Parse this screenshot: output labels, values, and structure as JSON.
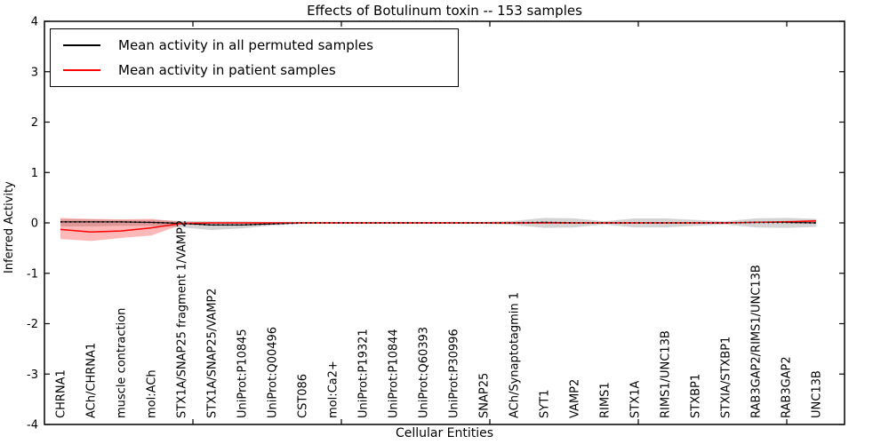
{
  "chart_data": {
    "type": "line",
    "title": "Effects of Botulinum toxin -- 153 samples",
    "xlabel": "Cellular Entities",
    "ylabel": "Inferred Activity",
    "ylim": [
      -4,
      4
    ],
    "yticks": [
      "4",
      "3",
      "2",
      "1",
      "0",
      "-1",
      "-2",
      "-3",
      "-4"
    ],
    "grid": false,
    "legend_position": "upper left",
    "categories": [
      "CHRNA1",
      "ACh/CHRNA1",
      "muscle contraction",
      "mol:ACh",
      "STX1A/SNAP25 fragment 1/VAMP2",
      "STX1A/SNAP25/VAMP2",
      "UniProt:P10845",
      "UniProt:Q00496",
      "CST086",
      "mol:Ca2+",
      "UniProt:P19321",
      "UniProt:P10844",
      "UniProt:Q60393",
      "UniProt:P30996",
      "SNAP25",
      "ACh/Synaptotagmin 1",
      "SYT1",
      "VAMP2",
      "RIMS1",
      "STX1A",
      "RIMS1/UNC13B",
      "STXBP1",
      "STXIA/STXBP1",
      "RAB3GAP2/RIMS1/UNC13B",
      "RAB3GAP2",
      "UNC13B"
    ],
    "series": [
      {
        "name": "Mean activity in all permuted samples",
        "color": "#000000",
        "values": [
          0.02,
          0.02,
          0.02,
          0.01,
          -0.01,
          -0.04,
          -0.04,
          -0.02,
          0,
          0,
          0,
          0,
          0,
          0,
          0,
          0,
          0.01,
          0,
          0,
          0,
          0,
          0,
          0,
          0.01,
          0.01,
          0
        ]
      },
      {
        "name": "Mean activity in patient samples",
        "color": "#ff0000",
        "values": [
          -0.13,
          -0.18,
          -0.16,
          -0.1,
          -0.01,
          0,
          0,
          0,
          0,
          0,
          0,
          0,
          0,
          0,
          0,
          0,
          0,
          0,
          0,
          0,
          0,
          0,
          0,
          0.01,
          0.02,
          0.04
        ]
      }
    ],
    "bands": [
      {
        "name": "permuted-confidence-band",
        "color": "rgba(110,110,110,0.30)",
        "upper": [
          0.07,
          0.07,
          0.06,
          0.06,
          0.04,
          0.03,
          0.03,
          0.02,
          0.02,
          0.02,
          0.02,
          0.02,
          0.02,
          0.02,
          0.02,
          0.04,
          0.1,
          0.09,
          0.03,
          0.09,
          0.09,
          0.06,
          0.03,
          0.09,
          0.1,
          0.08
        ],
        "lower": [
          -0.07,
          -0.07,
          -0.06,
          -0.06,
          -0.09,
          -0.14,
          -0.11,
          -0.05,
          -0.02,
          -0.02,
          -0.02,
          -0.02,
          -0.02,
          -0.02,
          -0.02,
          -0.04,
          -0.1,
          -0.09,
          -0.03,
          -0.09,
          -0.09,
          -0.06,
          -0.03,
          -0.09,
          -0.1,
          -0.08
        ]
      },
      {
        "name": "patient-confidence-band",
        "color": "rgba(255,0,0,0.28)",
        "upper": [
          0.1,
          0.08,
          0.07,
          0.08,
          0.02,
          0.01,
          0.01,
          0.01,
          0.01,
          0.01,
          0.01,
          0.01,
          0.01,
          0.01,
          0.01,
          0.01,
          0.01,
          0.01,
          0.01,
          0.01,
          0.01,
          0.01,
          0.01,
          0.02,
          0.04,
          0.06
        ],
        "lower": [
          -0.32,
          -0.36,
          -0.3,
          -0.25,
          -0.04,
          -0.01,
          -0.01,
          -0.01,
          -0.01,
          -0.01,
          -0.01,
          -0.01,
          -0.01,
          -0.01,
          -0.01,
          -0.01,
          -0.01,
          -0.01,
          -0.01,
          -0.01,
          -0.01,
          -0.01,
          -0.01,
          0.0,
          0.0,
          0.02
        ]
      }
    ]
  }
}
